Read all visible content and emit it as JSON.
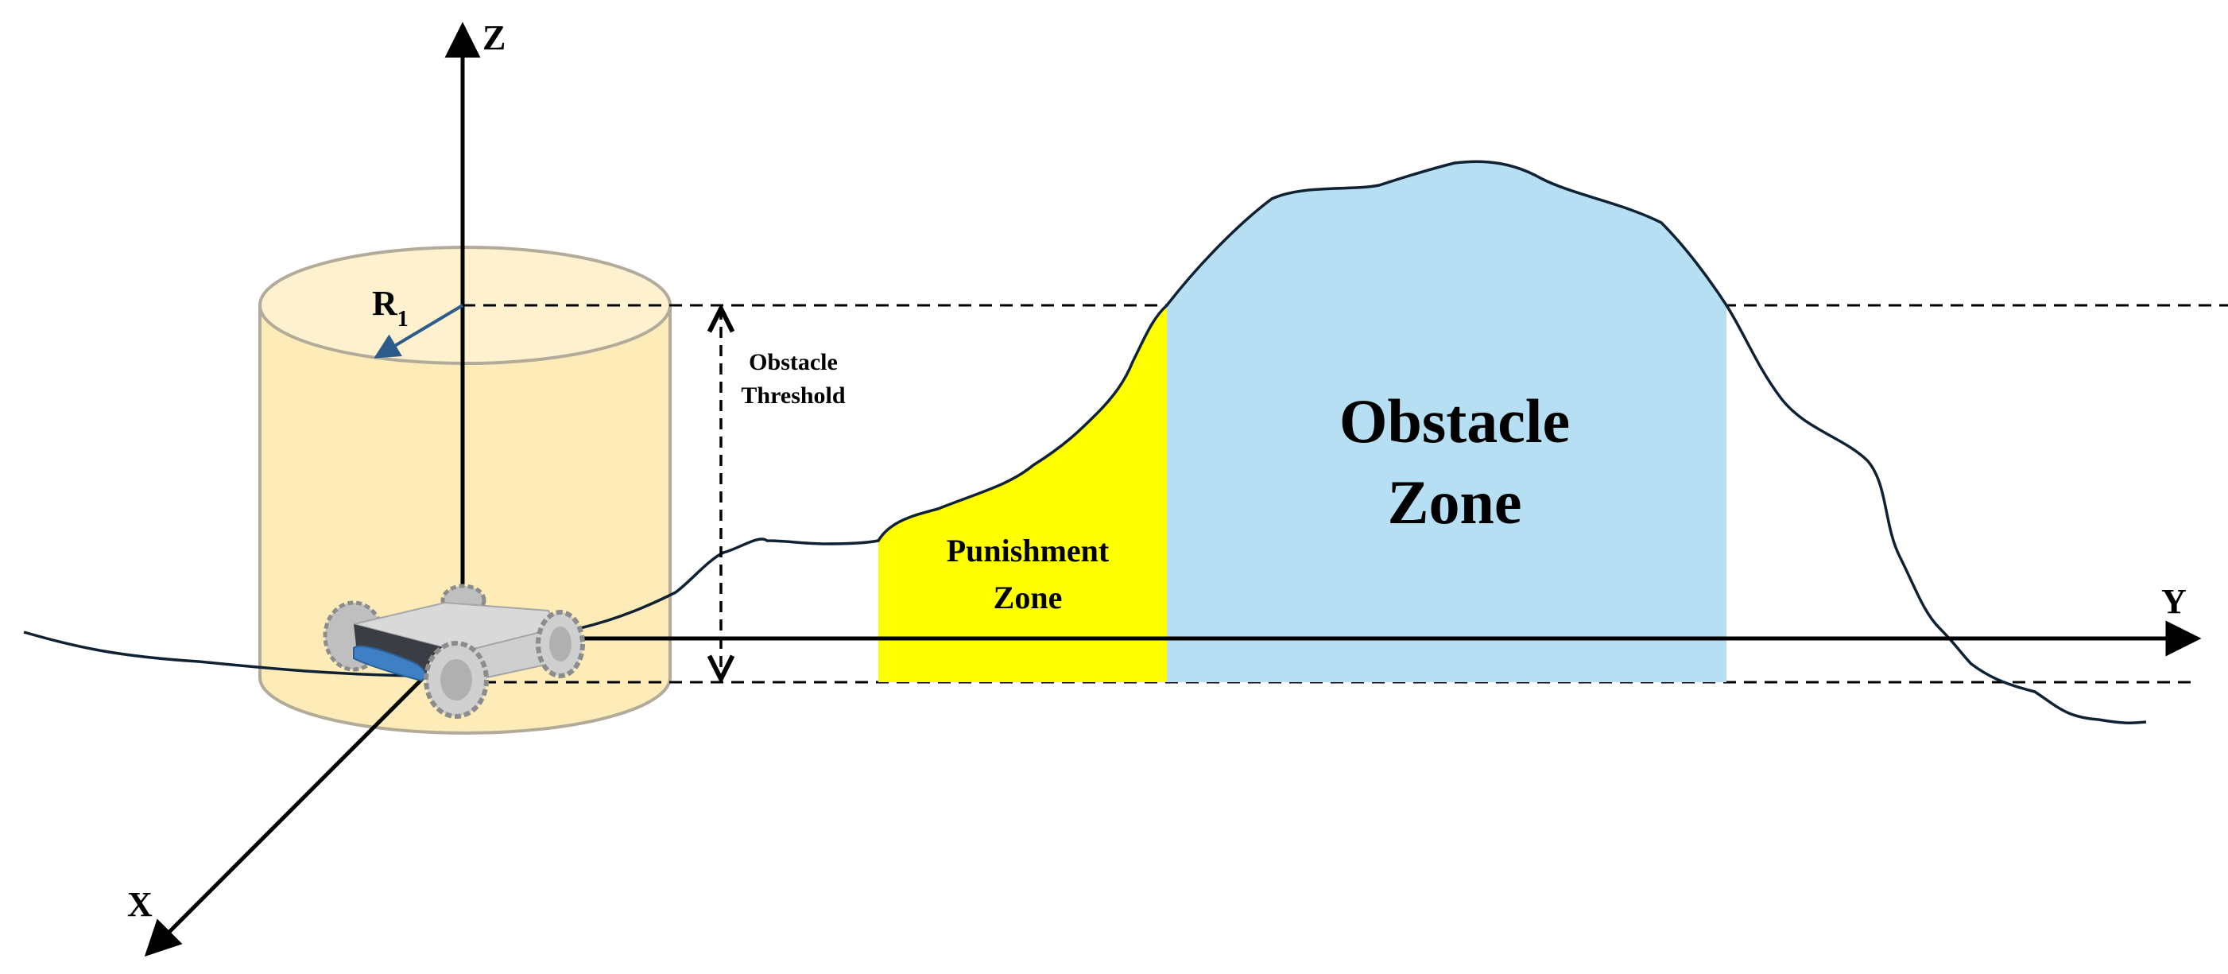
{
  "axes": {
    "z": "Z",
    "y": "Y",
    "x": "X"
  },
  "radius": {
    "base": "R",
    "subscript": "1"
  },
  "threshold": {
    "line1": "Obstacle",
    "line2": "Threshold"
  },
  "punishment_zone": {
    "line1": "Punishment",
    "line2": "Zone",
    "color": "#ffff00"
  },
  "obstacle_zone": {
    "line1": "Obstacle",
    "line2": "Zone",
    "color": "#b6dff3"
  },
  "colors": {
    "cylinder_fill": "#fdebb8",
    "cylinder_top": "#fdf1cf",
    "radius_arrow": "#2e5c8a",
    "terrain_line": "#0f2233",
    "robot_body": "#d9d9d9",
    "robot_accent": "#3f7fc4"
  }
}
